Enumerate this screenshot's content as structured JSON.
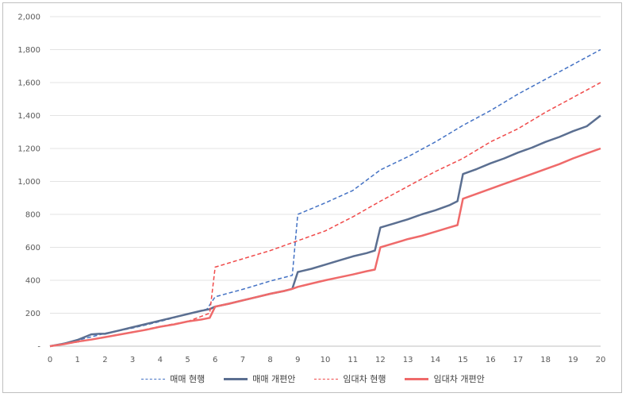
{
  "chart_data": {
    "type": "line",
    "title": "",
    "xlabel": "",
    "ylabel": "",
    "xlim": [
      0,
      20
    ],
    "ylim": [
      0,
      2000
    ],
    "x_ticks": [
      "0",
      "1",
      "2",
      "3",
      "4",
      "5",
      "6",
      "7",
      "8",
      "9",
      "10",
      "11",
      "12",
      "13",
      "14",
      "15",
      "16",
      "17",
      "18",
      "19",
      "20"
    ],
    "y_ticks": [
      "-",
      "200",
      "400",
      "600",
      "800",
      "1,000",
      "1,200",
      "1,400",
      "1,600",
      "1,800",
      "2,000"
    ],
    "grid": true,
    "legend_position": "bottom",
    "series": [
      {
        "name": "매매 현행",
        "color": "#4472c4",
        "style": "dashed",
        "points": [
          [
            0,
            0
          ],
          [
            1,
            35
          ],
          [
            2,
            78
          ],
          [
            3,
            110
          ],
          [
            4,
            150
          ],
          [
            5,
            195
          ],
          [
            5.7,
            225
          ],
          [
            6,
            300
          ],
          [
            7,
            345
          ],
          [
            8,
            395
          ],
          [
            8.8,
            430
          ],
          [
            9,
            800
          ],
          [
            10,
            870
          ],
          [
            11,
            945
          ],
          [
            12,
            1070
          ],
          [
            13,
            1150
          ],
          [
            14,
            1240
          ],
          [
            15,
            1340
          ],
          [
            16,
            1430
          ],
          [
            17,
            1530
          ],
          [
            18,
            1620
          ],
          [
            19,
            1710
          ],
          [
            20,
            1800
          ]
        ]
      },
      {
        "name": "매매 개편안",
        "color": "#5b6f91",
        "style": "solid",
        "points": [
          [
            0,
            0
          ],
          [
            0.5,
            15
          ],
          [
            1,
            38
          ],
          [
            1.5,
            72
          ],
          [
            1.8,
            75
          ],
          [
            2,
            75
          ],
          [
            2.5,
            95
          ],
          [
            3,
            115
          ],
          [
            3.5,
            135
          ],
          [
            4,
            155
          ],
          [
            4.5,
            175
          ],
          [
            5,
            195
          ],
          [
            5.5,
            215
          ],
          [
            5.8,
            225
          ],
          [
            6,
            240
          ],
          [
            6.5,
            258
          ],
          [
            7,
            278
          ],
          [
            7.5,
            298
          ],
          [
            8,
            318
          ],
          [
            8.5,
            335
          ],
          [
            8.8,
            348
          ],
          [
            9,
            450
          ],
          [
            9.5,
            470
          ],
          [
            10,
            495
          ],
          [
            10.5,
            520
          ],
          [
            11,
            545
          ],
          [
            11.5,
            565
          ],
          [
            11.8,
            580
          ],
          [
            12,
            720
          ],
          [
            12.5,
            745
          ],
          [
            13,
            770
          ],
          [
            13.5,
            800
          ],
          [
            14,
            825
          ],
          [
            14.5,
            855
          ],
          [
            14.8,
            880
          ],
          [
            15,
            1045
          ],
          [
            15.5,
            1075
          ],
          [
            16,
            1110
          ],
          [
            16.5,
            1140
          ],
          [
            17,
            1175
          ],
          [
            17.5,
            1205
          ],
          [
            18,
            1240
          ],
          [
            18.5,
            1270
          ],
          [
            19,
            1305
          ],
          [
            19.5,
            1335
          ],
          [
            20,
            1400
          ]
        ]
      },
      {
        "name": "임대차 현행",
        "color": "#f04a4a",
        "style": "dashed",
        "points": [
          [
            0,
            0
          ],
          [
            1,
            25
          ],
          [
            2,
            55
          ],
          [
            3,
            85
          ],
          [
            4,
            120
          ],
          [
            5,
            150
          ],
          [
            5.8,
            200
          ],
          [
            6,
            480
          ],
          [
            7,
            530
          ],
          [
            8,
            580
          ],
          [
            9,
            640
          ],
          [
            10,
            700
          ],
          [
            11,
            785
          ],
          [
            12,
            880
          ],
          [
            13,
            970
          ],
          [
            14,
            1060
          ],
          [
            15,
            1140
          ],
          [
            16,
            1240
          ],
          [
            17,
            1320
          ],
          [
            18,
            1420
          ],
          [
            19,
            1510
          ],
          [
            20,
            1600
          ]
        ]
      },
      {
        "name": "임대차 개편안",
        "color": "#ef6a6a",
        "style": "solid",
        "points": [
          [
            0,
            0
          ],
          [
            0.5,
            12
          ],
          [
            1,
            28
          ],
          [
            1.5,
            40
          ],
          [
            2,
            55
          ],
          [
            2.5,
            70
          ],
          [
            3,
            85
          ],
          [
            3.5,
            100
          ],
          [
            4,
            118
          ],
          [
            4.5,
            132
          ],
          [
            5,
            150
          ],
          [
            5.5,
            162
          ],
          [
            5.8,
            172
          ],
          [
            6,
            240
          ],
          [
            6.5,
            258
          ],
          [
            7,
            278
          ],
          [
            7.5,
            298
          ],
          [
            8,
            318
          ],
          [
            8.5,
            335
          ],
          [
            8.8,
            348
          ],
          [
            9,
            360
          ],
          [
            9.5,
            380
          ],
          [
            10,
            400
          ],
          [
            10.5,
            418
          ],
          [
            11,
            435
          ],
          [
            11.5,
            455
          ],
          [
            11.8,
            465
          ],
          [
            12,
            600
          ],
          [
            12.5,
            625
          ],
          [
            13,
            650
          ],
          [
            13.5,
            670
          ],
          [
            14,
            695
          ],
          [
            14.5,
            720
          ],
          [
            14.8,
            735
          ],
          [
            15,
            895
          ],
          [
            15.5,
            925
          ],
          [
            16,
            955
          ],
          [
            16.5,
            985
          ],
          [
            17,
            1015
          ],
          [
            17.5,
            1045
          ],
          [
            18,
            1075
          ],
          [
            18.5,
            1105
          ],
          [
            19,
            1140
          ],
          [
            19.5,
            1170
          ],
          [
            20,
            1200
          ]
        ]
      }
    ]
  }
}
